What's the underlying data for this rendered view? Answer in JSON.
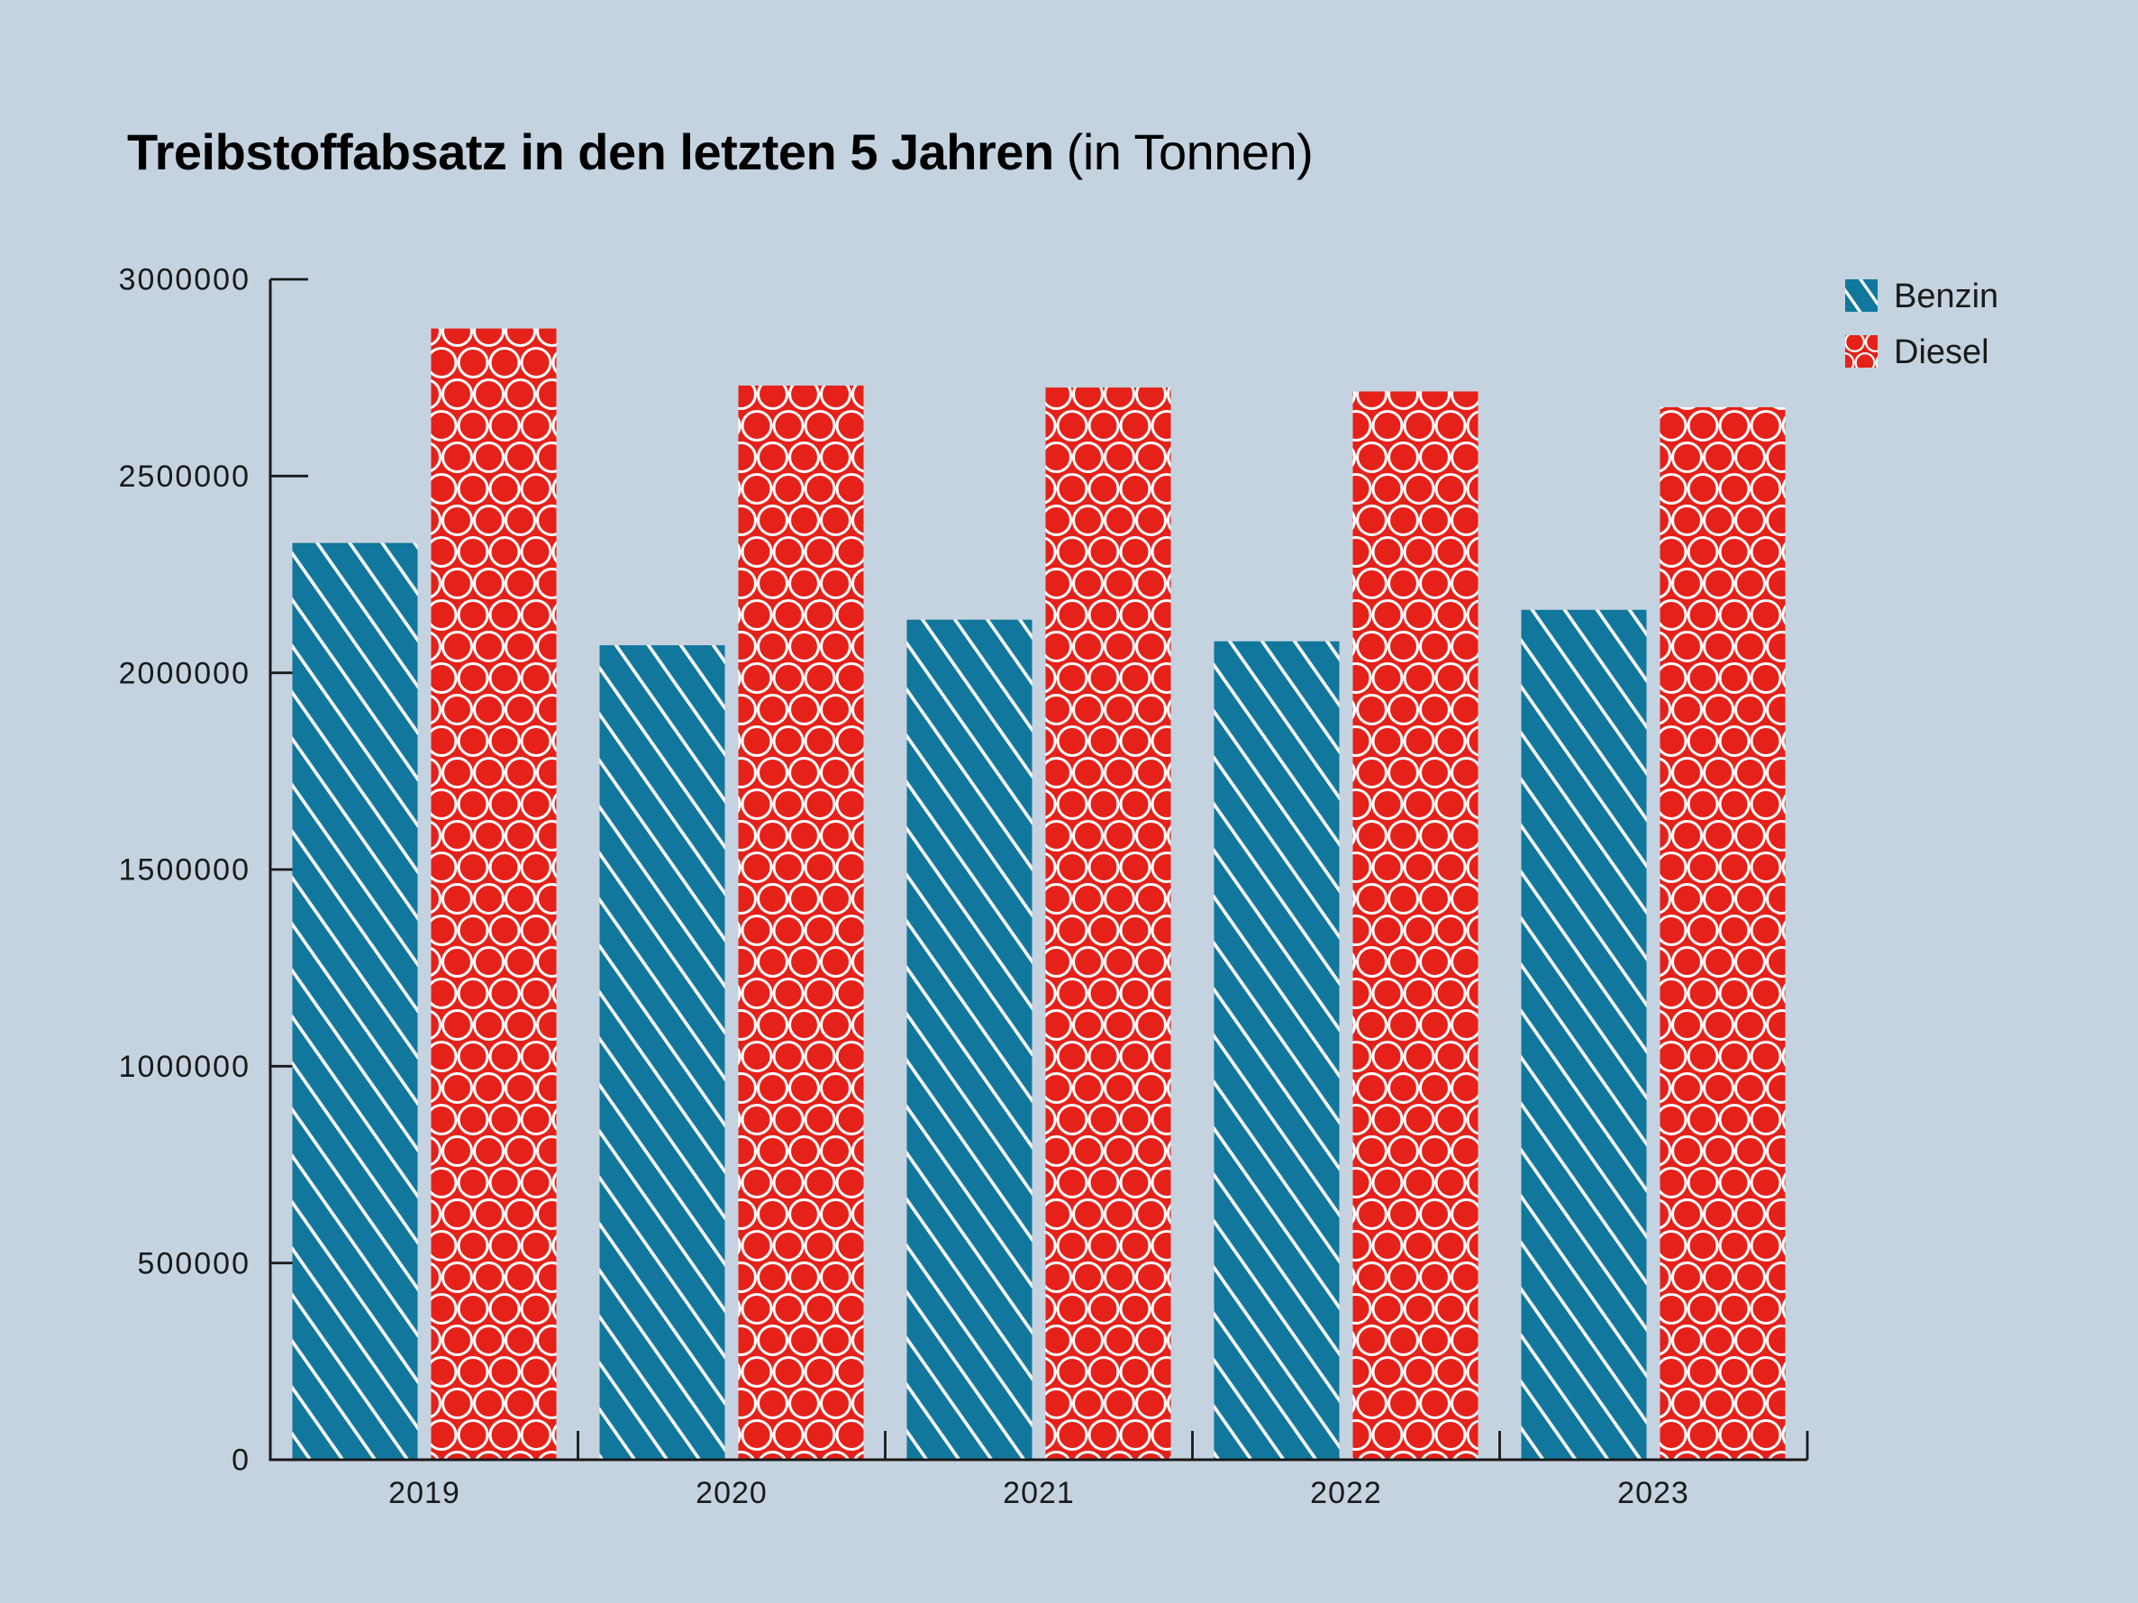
{
  "page": {
    "background": "#c4d3df"
  },
  "title": {
    "main": "Treibstoffabsatz in den letzten 5 Jahren",
    "unit": "(in Tonnen)"
  },
  "legend": {
    "position": "top-right",
    "items": [
      {
        "label": "Benzin",
        "swatch": "blue-diagonal-stripes"
      },
      {
        "label": "Diesel",
        "swatch": "red-circle-grid"
      }
    ]
  },
  "chart_data": {
    "type": "bar",
    "title": "Treibstoffabsatz in den letzten 5 Jahren (in Tonnen)",
    "categories": [
      "2019",
      "2020",
      "2021",
      "2022",
      "2023"
    ],
    "series": [
      {
        "name": "Benzin",
        "color": "#11779c",
        "pattern": "white-diagonal-stripes",
        "values": [
          2330000,
          2070000,
          2135000,
          2080000,
          2160000
        ]
      },
      {
        "name": "Diesel",
        "color": "#e52119",
        "pattern": "white-circle-grid",
        "values": [
          2875000,
          2730000,
          2725000,
          2715000,
          2675000
        ]
      }
    ],
    "units": "Tonnen",
    "ylim": [
      0,
      3000000
    ],
    "yticks": [
      0,
      500000,
      1000000,
      1500000,
      2000000,
      2500000,
      3000000
    ],
    "ytick_labels": [
      "0",
      "500000",
      "1000000",
      "1500000",
      "2000000",
      "2500000",
      "3000000"
    ],
    "grid": false,
    "legend_position": "top-right",
    "axis_color": "#1a1a1a",
    "text_color": "#1a1a1a",
    "title_color": "#000000",
    "pattern_stroke_color": "#ffffff"
  }
}
